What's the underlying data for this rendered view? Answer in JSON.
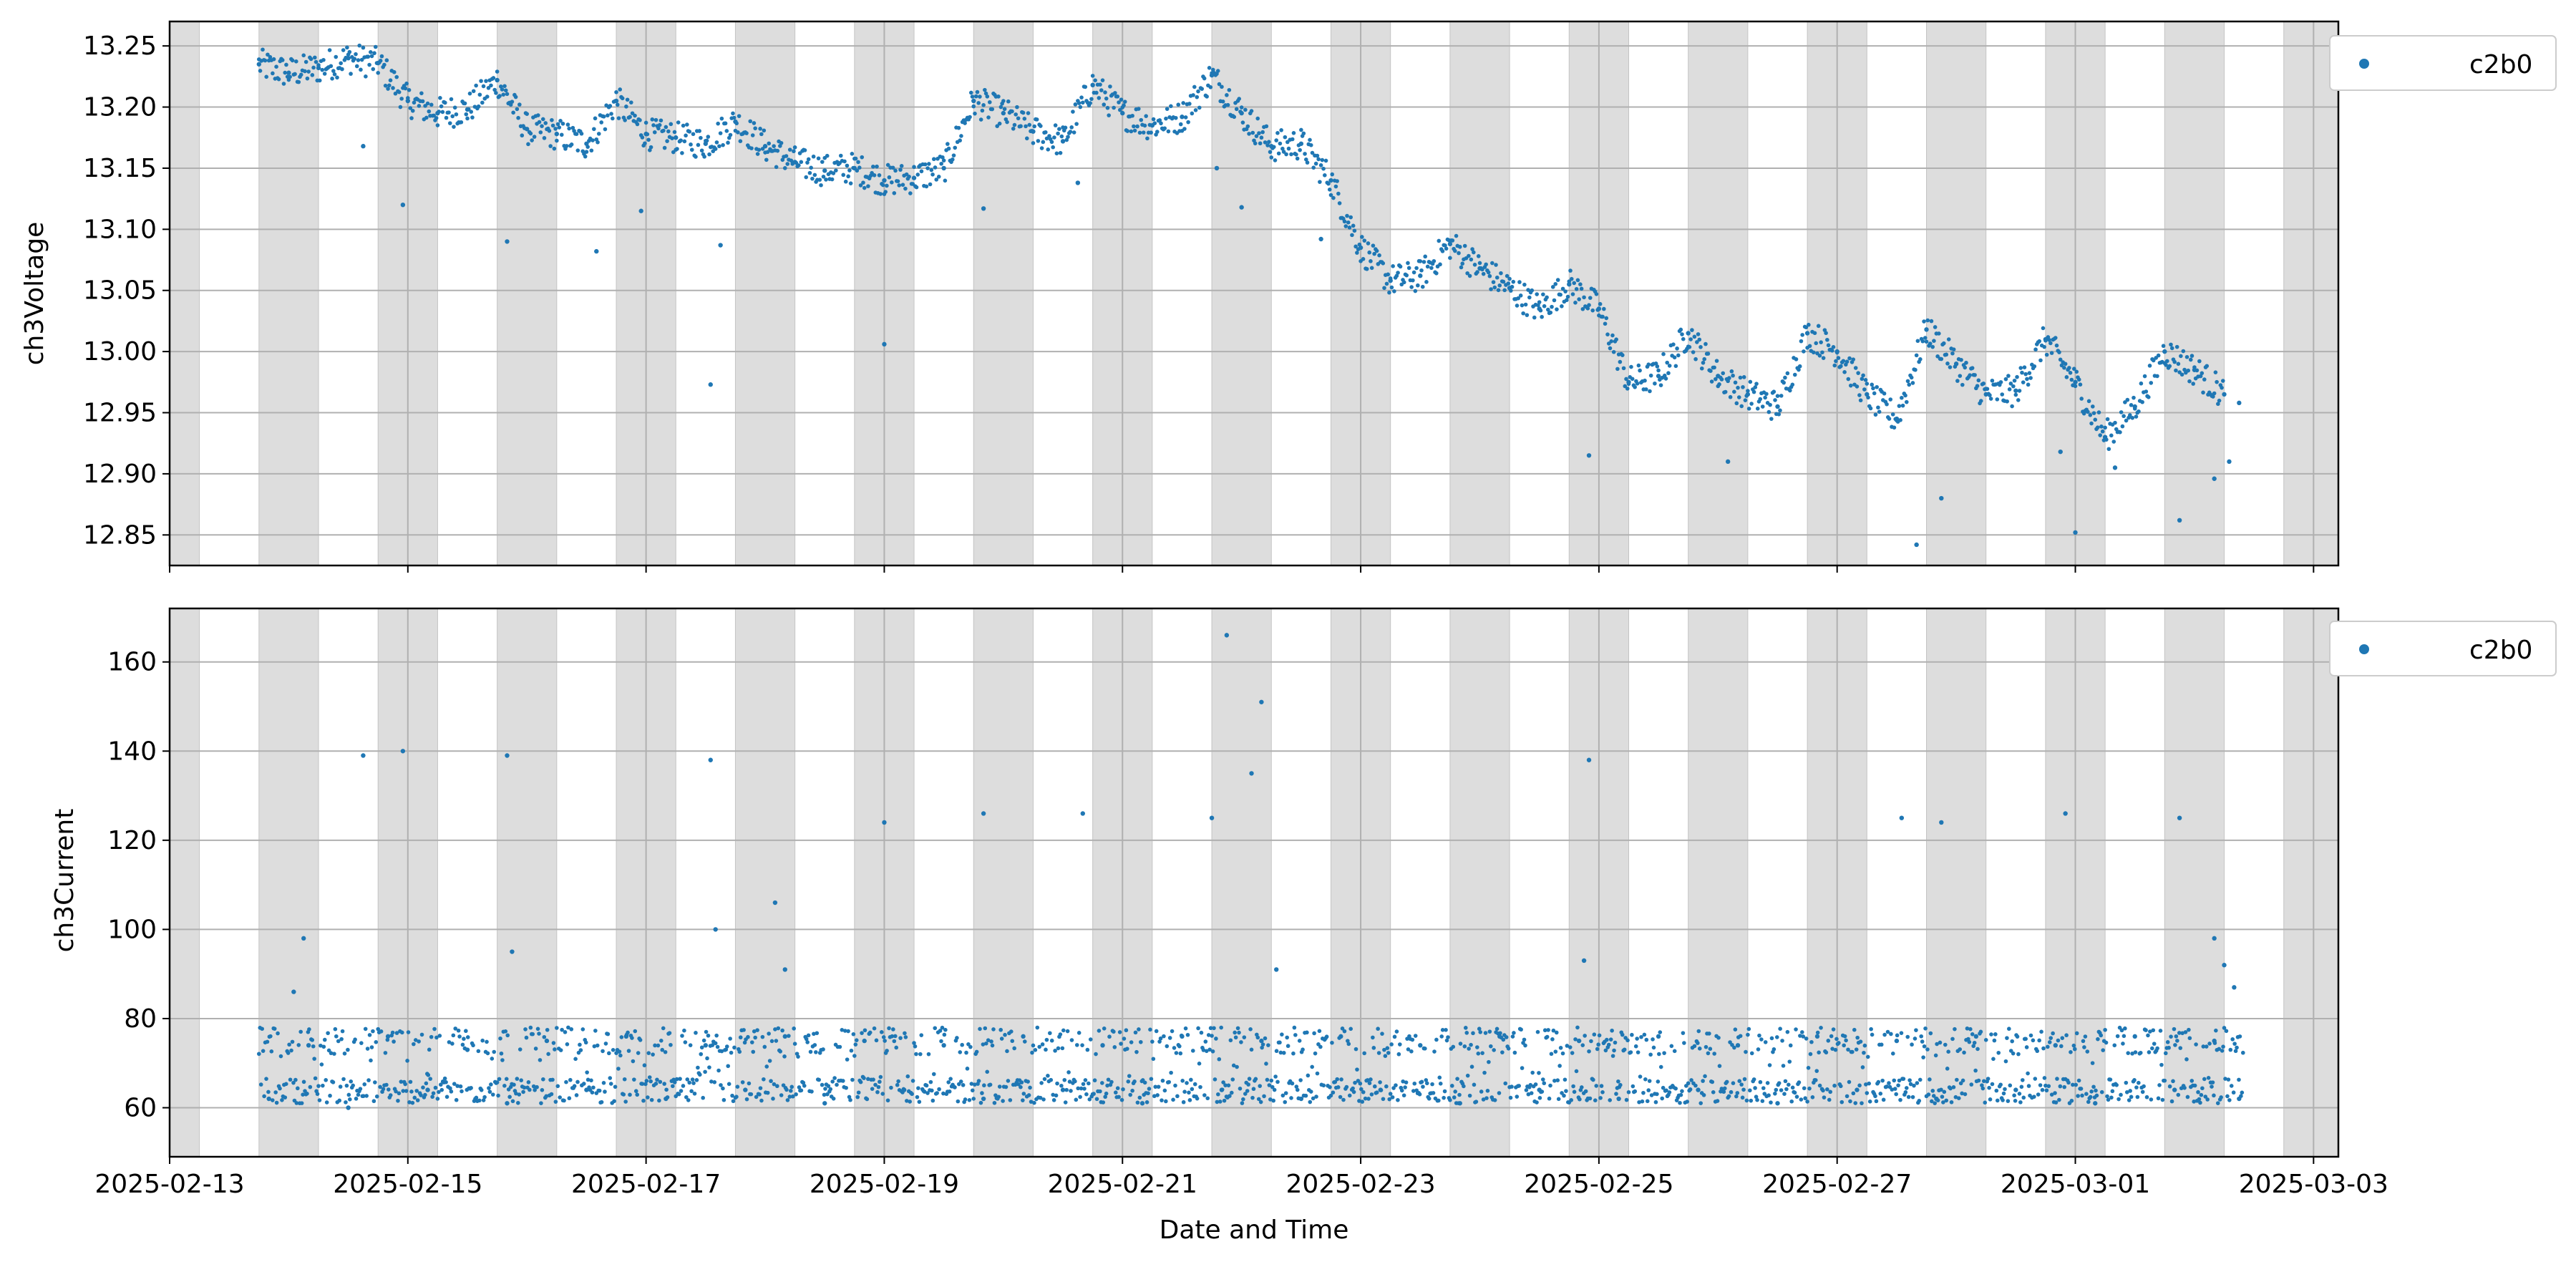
{
  "chart_data": [
    {
      "type": "scatter",
      "ylabel": "ch3Voltage",
      "ylim": [
        12.825,
        13.27
      ],
      "yticks": [
        12.85,
        12.9,
        12.95,
        13.0,
        13.05,
        13.1,
        13.15,
        13.2,
        13.25
      ],
      "ytick_labels": [
        "12.85",
        "12.90",
        "12.95",
        "13.00",
        "13.05",
        "13.10",
        "13.15",
        "13.20",
        "13.25"
      ],
      "xlim": [
        "2025-02-13T00:00",
        "2025-03-03T05:00"
      ],
      "grid": true,
      "legend": "outside-upper-right",
      "series": [
        {
          "name": "c2b0",
          "color": "#1f77b4",
          "points": [
            [
              "2025-02-13T18:00",
              13.235
            ],
            [
              "2025-02-14T00:00",
              13.228
            ],
            [
              "2025-02-14T06:00",
              13.232
            ],
            [
              "2025-02-14T12:00",
              13.24
            ],
            [
              "2025-02-14T18:00",
              13.236
            ],
            [
              "2025-02-15T00:00",
              13.205
            ],
            [
              "2025-02-15T06:00",
              13.195
            ],
            [
              "2025-02-15T12:00",
              13.198
            ],
            [
              "2025-02-15T18:00",
              13.222
            ],
            [
              "2025-02-16T00:00",
              13.182
            ],
            [
              "2025-02-16T06:00",
              13.178
            ],
            [
              "2025-02-16T12:00",
              13.17
            ],
            [
              "2025-02-16T18:00",
              13.205
            ],
            [
              "2025-02-17T00:00",
              13.178
            ],
            [
              "2025-02-17T06:00",
              13.175
            ],
            [
              "2025-02-17T12:00",
              13.17
            ],
            [
              "2025-02-17T18:00",
              13.188
            ],
            [
              "2025-02-18T00:00",
              13.168
            ],
            [
              "2025-02-18T06:00",
              13.155
            ],
            [
              "2025-02-18T12:00",
              13.148
            ],
            [
              "2025-02-18T18:00",
              13.15
            ],
            [
              "2025-02-19T00:00",
              13.14
            ],
            [
              "2025-02-19T06:00",
              13.142
            ],
            [
              "2025-02-19T12:00",
              13.15
            ],
            [
              "2025-02-19T18:00",
              13.205
            ],
            [
              "2025-02-20T00:00",
              13.195
            ],
            [
              "2025-02-20T06:00",
              13.18
            ],
            [
              "2025-02-20T12:00",
              13.172
            ],
            [
              "2025-02-20T18:00",
              13.218
            ],
            [
              "2025-02-21T00:00",
              13.195
            ],
            [
              "2025-02-21T06:00",
              13.185
            ],
            [
              "2025-02-21T12:00",
              13.192
            ],
            [
              "2025-02-21T18:00",
              13.226
            ],
            [
              "2025-02-22T00:00",
              13.195
            ],
            [
              "2025-02-22T06:00",
              13.168
            ],
            [
              "2025-02-22T12:00",
              13.17
            ],
            [
              "2025-02-22T18:00",
              13.14
            ],
            [
              "2025-02-23T00:00",
              13.085
            ],
            [
              "2025-02-23T06:00",
              13.058
            ],
            [
              "2025-02-23T12:00",
              13.062
            ],
            [
              "2025-02-23T18:00",
              13.088
            ],
            [
              "2025-02-24T00:00",
              13.068
            ],
            [
              "2025-02-24T06:00",
              13.052
            ],
            [
              "2025-02-24T12:00",
              13.035
            ],
            [
              "2025-02-24T18:00",
              13.055
            ],
            [
              "2025-02-25T00:00",
              13.035
            ],
            [
              "2025-02-25T06:00",
              12.975
            ],
            [
              "2025-02-25T12:00",
              12.98
            ],
            [
              "2025-02-25T18:00",
              13.015
            ],
            [
              "2025-02-26T00:00",
              12.98
            ],
            [
              "2025-02-26T06:00",
              12.965
            ],
            [
              "2025-02-26T12:00",
              12.955
            ],
            [
              "2025-02-26T18:00",
              13.015
            ],
            [
              "2025-02-27T00:00",
              13.0
            ],
            [
              "2025-02-27T06:00",
              12.965
            ],
            [
              "2025-02-27T12:00",
              12.945
            ],
            [
              "2025-02-27T18:00",
              13.018
            ],
            [
              "2025-02-28T00:00",
              12.99
            ],
            [
              "2025-02-28T06:00",
              12.965
            ],
            [
              "2025-02-28T12:00",
              12.968
            ],
            [
              "2025-02-28T18:00",
              13.01
            ],
            [
              "2025-03-01T00:00",
              12.975
            ],
            [
              "2025-03-01T06:00",
              12.93
            ],
            [
              "2025-03-01T12:00",
              12.955
            ],
            [
              "2025-03-01T18:00",
              13.0
            ],
            [
              "2025-03-02T00:00",
              12.985
            ],
            [
              "2025-03-02T06:00",
              12.965
            ],
            [
              "2025-03-02T09:00",
              12.958
            ],
            [
              "2025-02-14T15:00",
              13.168
            ],
            [
              "2025-02-14T23:00",
              13.12
            ],
            [
              "2025-02-15T20:00",
              13.09
            ],
            [
              "2025-02-16T14:00",
              13.082
            ],
            [
              "2025-02-16T23:00",
              13.115
            ],
            [
              "2025-02-17T13:00",
              12.973
            ],
            [
              "2025-02-17T15:00",
              13.087
            ],
            [
              "2025-02-19T00:00",
              13.006
            ],
            [
              "2025-02-19T20:00",
              13.117
            ],
            [
              "2025-02-20T15:00",
              13.138
            ],
            [
              "2025-02-21T19:00",
              13.15
            ],
            [
              "2025-02-22T00:00",
              13.118
            ],
            [
              "2025-02-22T16:00",
              13.092
            ],
            [
              "2025-02-24T22:00",
              12.915
            ],
            [
              "2025-02-26T02:00",
              12.91
            ],
            [
              "2025-02-27T16:00",
              12.842
            ],
            [
              "2025-02-27T21:00",
              12.88
            ],
            [
              "2025-02-28T21:00",
              12.918
            ],
            [
              "2025-03-01T00:00",
              12.852
            ],
            [
              "2025-03-01T08:00",
              12.905
            ],
            [
              "2025-03-01T21:00",
              12.862
            ],
            [
              "2025-03-02T04:00",
              12.896
            ],
            [
              "2025-03-02T07:00",
              12.91
            ]
          ]
        }
      ]
    },
    {
      "type": "scatter",
      "xlabel": "Date and Time",
      "ylabel": "ch3Current",
      "ylim": [
        49,
        172
      ],
      "yticks": [
        60,
        80,
        100,
        120,
        140,
        160
      ],
      "ytick_labels": [
        "60",
        "80",
        "100",
        "120",
        "140",
        "160"
      ],
      "xlim": [
        "2025-02-13T00:00",
        "2025-03-03T05:00"
      ],
      "xticks": [
        "2025-02-13",
        "2025-02-15",
        "2025-02-17",
        "2025-02-19",
        "2025-02-21",
        "2025-02-23",
        "2025-02-25",
        "2025-02-27",
        "2025-03-01",
        "2025-03-03"
      ],
      "xtick_labels": [
        "2025-02-13",
        "2025-02-15",
        "2025-02-17",
        "2025-02-19",
        "2025-02-21",
        "2025-02-23",
        "2025-02-25",
        "2025-02-27",
        "2025-03-01",
        "2025-03-03"
      ],
      "grid": true,
      "legend": "outside-upper-right",
      "series": [
        {
          "name": "c2b0",
          "color": "#1f77b4",
          "points": [
            [
              "2025-02-13T20:00",
              62
            ],
            [
              "2025-02-14T04:00",
              74
            ],
            [
              "2025-02-14T12:00",
              60
            ],
            [
              "2025-02-14T20:00",
              76
            ],
            [
              "2025-02-15T04:00",
              64
            ],
            [
              "2025-02-15T12:00",
              73
            ],
            [
              "2025-02-15T20:00",
              61
            ],
            [
              "2025-02-16T04:00",
              75
            ],
            [
              "2025-02-16T12:00",
              64
            ],
            [
              "2025-02-16T20:00",
              76
            ],
            [
              "2025-02-17T04:00",
              62
            ],
            [
              "2025-02-17T12:00",
              74
            ],
            [
              "2025-02-17T20:00",
              64
            ],
            [
              "2025-02-18T04:00",
              76
            ],
            [
              "2025-02-18T12:00",
              61
            ],
            [
              "2025-02-18T20:00",
              75
            ],
            [
              "2025-02-19T04:00",
              64
            ],
            [
              "2025-02-19T12:00",
              74
            ],
            [
              "2025-02-19T20:00",
              62
            ],
            [
              "2025-02-20T04:00",
              76
            ],
            [
              "2025-02-20T12:00",
              64
            ],
            [
              "2025-02-20T20:00",
              74
            ],
            [
              "2025-02-21T04:00",
              61
            ],
            [
              "2025-02-21T12:00",
              76
            ],
            [
              "2025-02-21T20:00",
              64
            ],
            [
              "2025-02-22T04:00",
              75
            ],
            [
              "2025-02-22T12:00",
              62
            ],
            [
              "2025-02-22T20:00",
              76
            ],
            [
              "2025-02-23T04:00",
              64
            ],
            [
              "2025-02-23T12:00",
              74
            ],
            [
              "2025-02-23T20:00",
              61
            ],
            [
              "2025-02-24T04:00",
              76
            ],
            [
              "2025-02-24T12:00",
              64
            ],
            [
              "2025-02-24T20:00",
              75
            ],
            [
              "2025-02-25T04:00",
              62
            ],
            [
              "2025-02-25T12:00",
              76
            ],
            [
              "2025-02-25T20:00",
              64
            ],
            [
              "2025-02-26T04:00",
              74
            ],
            [
              "2025-02-26T12:00",
              61
            ],
            [
              "2025-02-26T20:00",
              76
            ],
            [
              "2025-02-27T04:00",
              64
            ],
            [
              "2025-02-27T12:00",
              75
            ],
            [
              "2025-02-27T20:00",
              62
            ],
            [
              "2025-02-28T04:00",
              76
            ],
            [
              "2025-02-28T12:00",
              64
            ],
            [
              "2025-02-28T20:00",
              74
            ],
            [
              "2025-03-01T04:00",
              61
            ],
            [
              "2025-03-01T12:00",
              76
            ],
            [
              "2025-03-01T20:00",
              64
            ],
            [
              "2025-03-02T04:00",
              75
            ],
            [
              "2025-03-02T09:00",
              62
            ],
            [
              "2025-02-14T01:00",
              86
            ],
            [
              "2025-02-14T03:00",
              98
            ],
            [
              "2025-02-14T15:00",
              139
            ],
            [
              "2025-02-14T23:00",
              140
            ],
            [
              "2025-02-15T20:00",
              139
            ],
            [
              "2025-02-15T21:00",
              95
            ],
            [
              "2025-02-17T13:00",
              138
            ],
            [
              "2025-02-17T14:00",
              100
            ],
            [
              "2025-02-18T02:00",
              106
            ],
            [
              "2025-02-18T04:00",
              91
            ],
            [
              "2025-02-19T00:00",
              124
            ],
            [
              "2025-02-19T20:00",
              126
            ],
            [
              "2025-02-20T16:00",
              126
            ],
            [
              "2025-02-21T18:00",
              125
            ],
            [
              "2025-02-21T21:00",
              166
            ],
            [
              "2025-02-22T02:00",
              135
            ],
            [
              "2025-02-22T04:00",
              151
            ],
            [
              "2025-02-22T07:00",
              91
            ],
            [
              "2025-02-24T22:00",
              138
            ],
            [
              "2025-02-24T21:00",
              93
            ],
            [
              "2025-02-27T13:00",
              125
            ],
            [
              "2025-02-27T21:00",
              124
            ],
            [
              "2025-02-28T22:00",
              126
            ],
            [
              "2025-03-01T21:00",
              125
            ],
            [
              "2025-03-02T04:00",
              98
            ],
            [
              "2025-03-02T06:00",
              92
            ],
            [
              "2025-03-02T08:00",
              87
            ]
          ]
        }
      ]
    }
  ],
  "shading": {
    "color": "#dddddd",
    "hourly_bands": [
      [
        "2025-02-13T00:00",
        "2025-02-13T06:00"
      ],
      [
        "2025-02-13T18:00",
        "2025-02-14T06:00"
      ],
      [
        "2025-02-14T18:00",
        "2025-02-15T06:00"
      ],
      [
        "2025-02-15T18:00",
        "2025-02-16T06:00"
      ],
      [
        "2025-02-16T18:00",
        "2025-02-17T06:00"
      ],
      [
        "2025-02-17T18:00",
        "2025-02-18T06:00"
      ],
      [
        "2025-02-18T18:00",
        "2025-02-19T06:00"
      ],
      [
        "2025-02-19T18:00",
        "2025-02-20T06:00"
      ],
      [
        "2025-02-20T18:00",
        "2025-02-21T06:00"
      ],
      [
        "2025-02-21T18:00",
        "2025-02-22T06:00"
      ],
      [
        "2025-02-22T18:00",
        "2025-02-23T06:00"
      ],
      [
        "2025-02-23T18:00",
        "2025-02-24T06:00"
      ],
      [
        "2025-02-24T18:00",
        "2025-02-25T06:00"
      ],
      [
        "2025-02-25T18:00",
        "2025-02-26T06:00"
      ],
      [
        "2025-02-26T18:00",
        "2025-02-27T06:00"
      ],
      [
        "2025-02-27T18:00",
        "2025-02-28T06:00"
      ],
      [
        "2025-02-28T18:00",
        "2025-03-01T06:00"
      ],
      [
        "2025-03-01T18:00",
        "2025-03-02T06:00"
      ],
      [
        "2025-03-02T18:00",
        "2025-03-03T05:00"
      ]
    ]
  }
}
